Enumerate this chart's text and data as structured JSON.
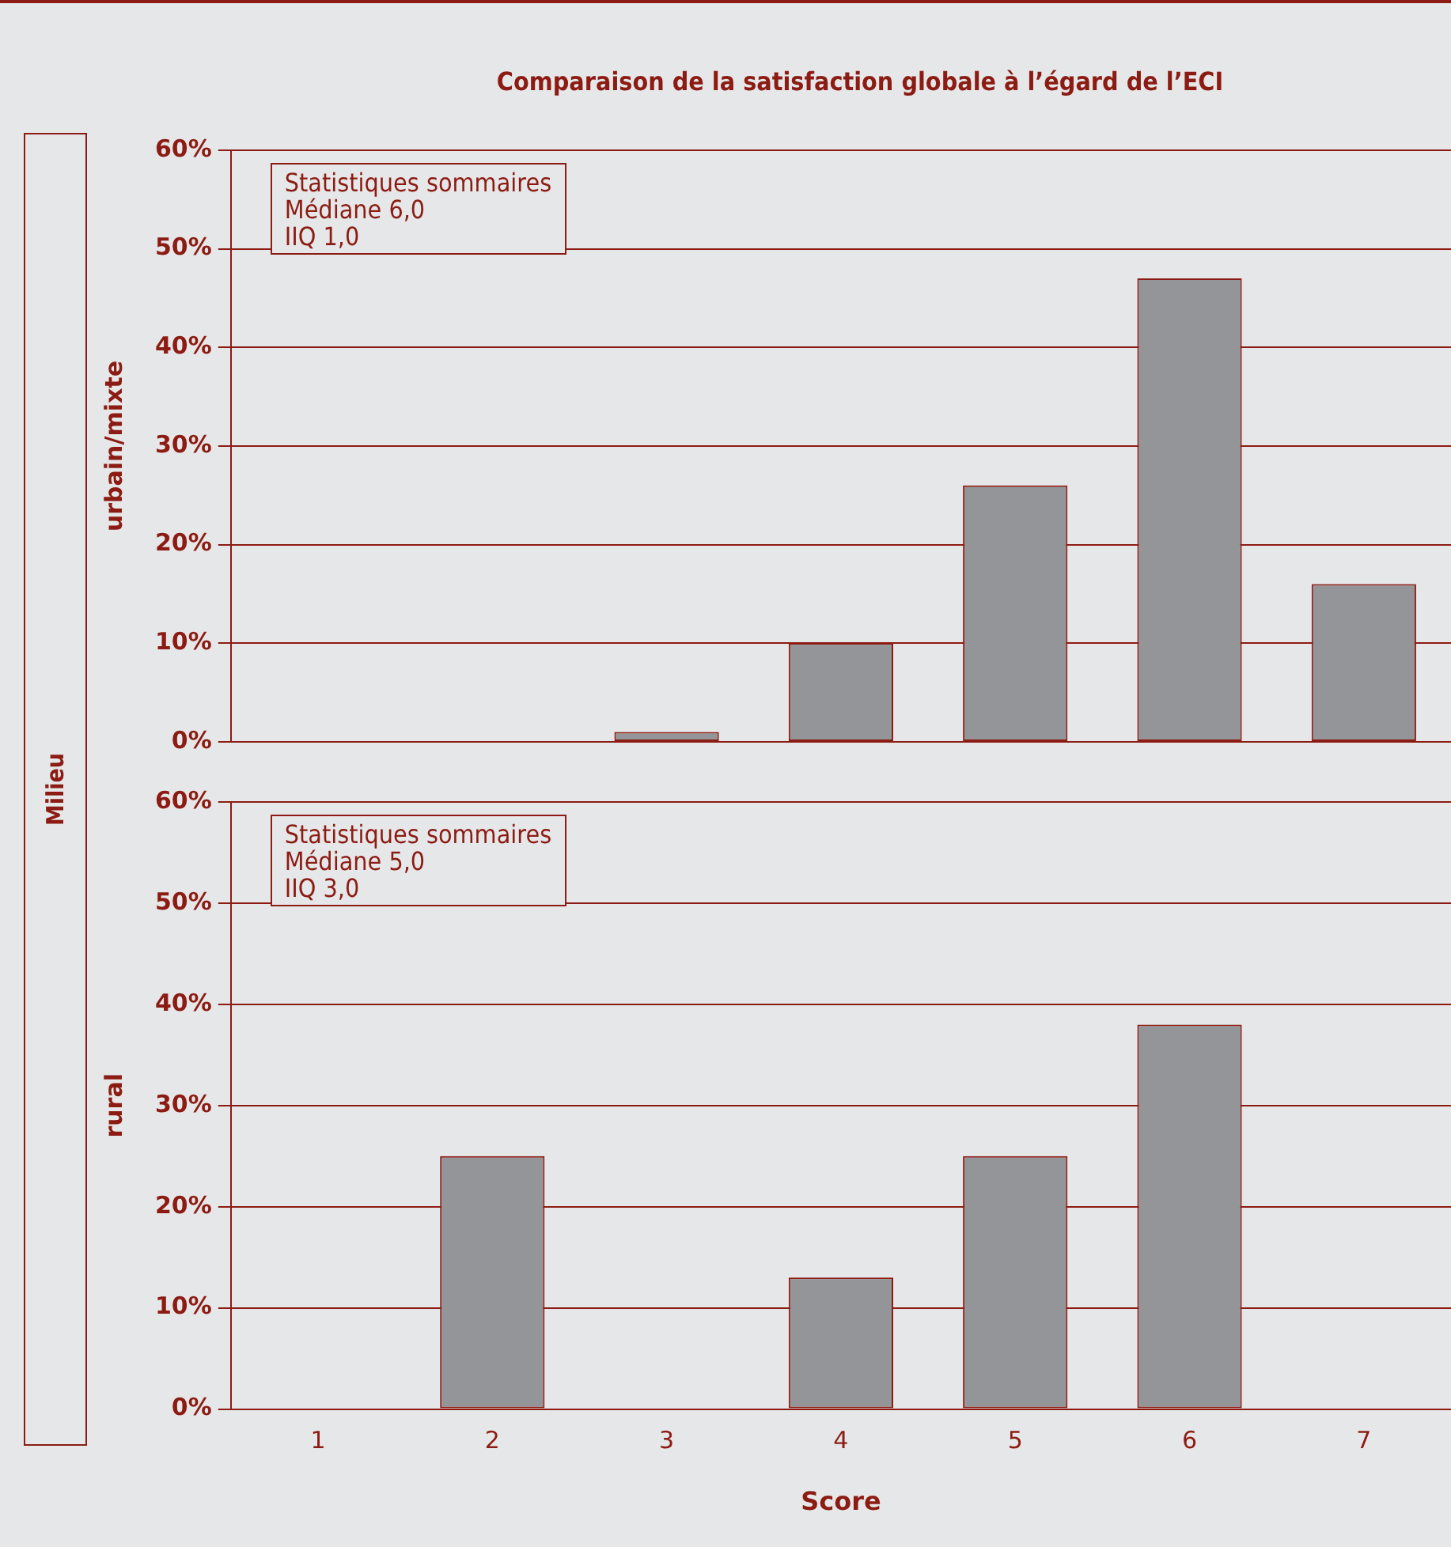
{
  "chart_data": [
    {
      "type": "bar",
      "title": "Comparaison de la satisfaction globale à l’égard de l’ECI",
      "ylabel": "urbain/mixte",
      "categories": [
        "1",
        "2",
        "3",
        "4",
        "5",
        "6",
        "7"
      ],
      "values": [
        0,
        0,
        1,
        10,
        26,
        47,
        16
      ],
      "color": "#939598",
      "ylim": [
        0,
        60
      ],
      "yticks": [
        {
          "value": 0,
          "label": "0%"
        },
        {
          "value": 10,
          "label": "10%"
        },
        {
          "value": 20,
          "label": "20%"
        },
        {
          "value": 30,
          "label": "30%"
        },
        {
          "value": 40,
          "label": "40%"
        },
        {
          "value": 50,
          "label": "50%"
        },
        {
          "value": 60,
          "label": "60%"
        }
      ],
      "grid": "y",
      "tick_labels": "y",
      "annotations": [
        "Milieu",
        "Statistiques sommaires",
        "Médiane 6,0",
        "IIQ 1,0"
      ]
    },
    {
      "type": "bar",
      "ylabel": "rural",
      "xlabel": "Score",
      "categories": [
        "1",
        "2",
        "3",
        "4",
        "5",
        "6",
        "7"
      ],
      "values": [
        0,
        25,
        0,
        13,
        25,
        38,
        0
      ],
      "color": "#939598",
      "ylim": [
        0,
        60
      ],
      "yticks": [
        {
          "value": 0,
          "label": "0%"
        },
        {
          "value": 10,
          "label": "10%"
        },
        {
          "value": 20,
          "label": "20%"
        },
        {
          "value": 30,
          "label": "30%"
        },
        {
          "value": 40,
          "label": "40%"
        },
        {
          "value": 50,
          "label": "50%"
        },
        {
          "value": 60,
          "label": "60%"
        }
      ],
      "grid": "y",
      "annotations": [
        "Statistiques sommaires",
        "Médiane 5,0",
        "IIQ 3,0"
      ]
    }
  ]
}
